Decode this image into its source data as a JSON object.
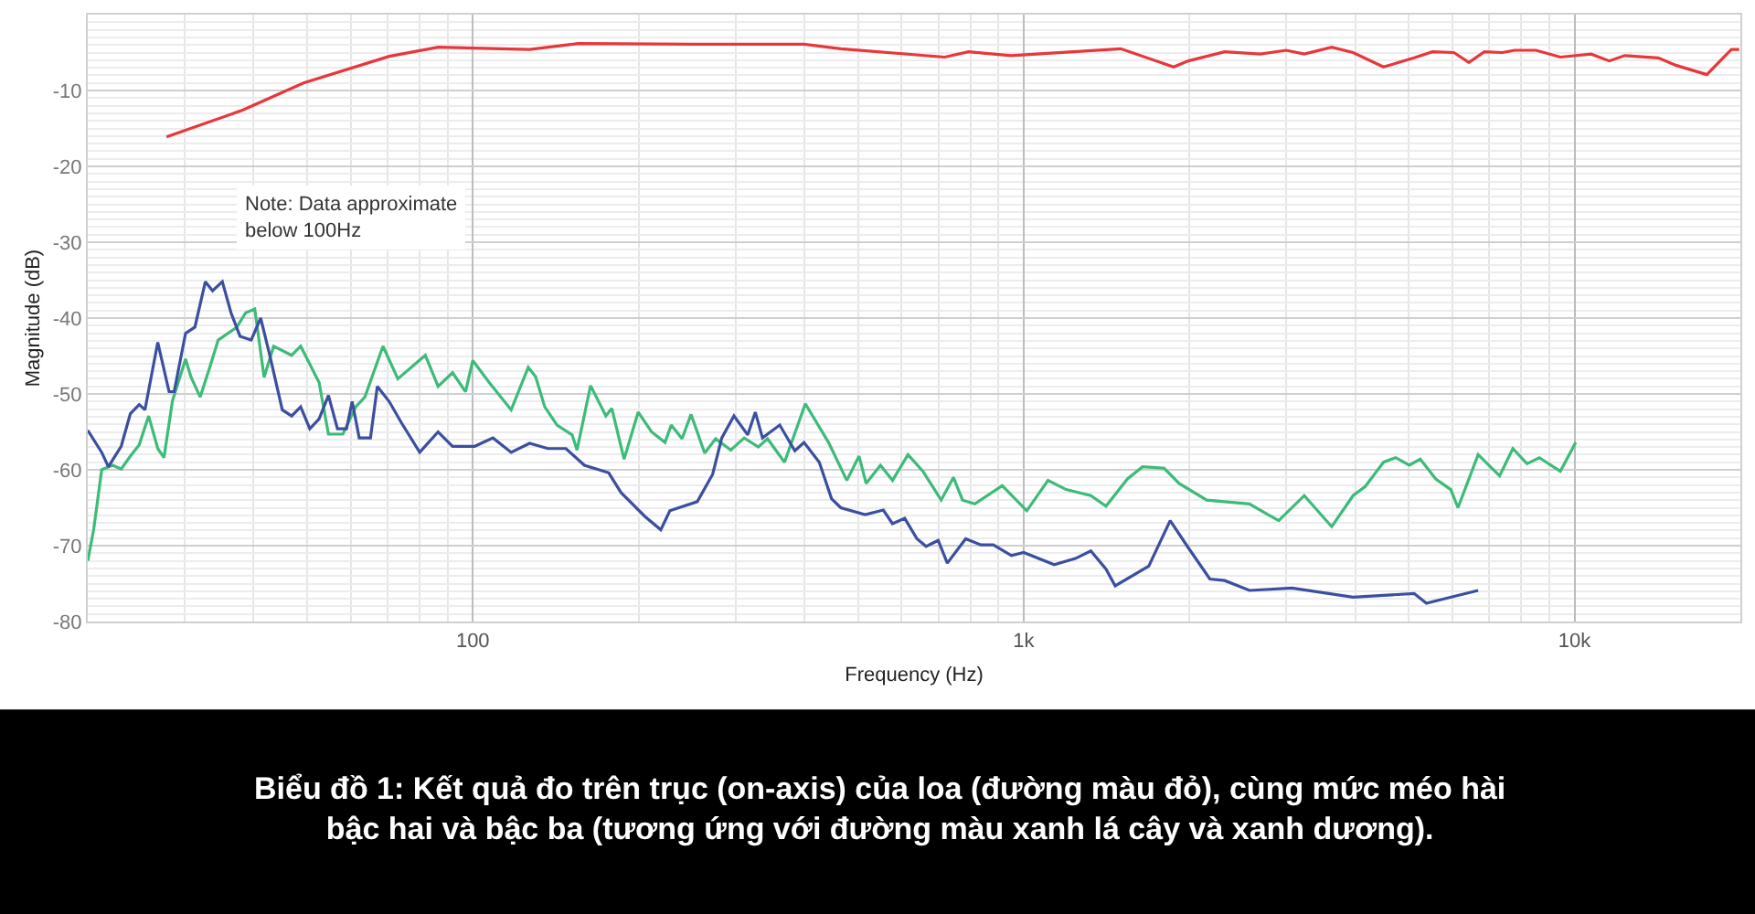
{
  "chart_data": {
    "type": "line",
    "xlabel": "Frequency (Hz)",
    "ylabel": "Magnitude (dB)",
    "log": "x",
    "grid": true,
    "xlim": [
      20,
      20000
    ],
    "xticks": [
      {
        "value": 100,
        "label": "100"
      },
      {
        "value": 1000,
        "label": "1k"
      },
      {
        "value": 10000,
        "label": "10k"
      }
    ],
    "ylim": [
      -80,
      0
    ],
    "yticks": [
      -80,
      -70,
      -60,
      -50,
      -40,
      -30,
      -20,
      -10
    ],
    "annotations": [
      "Note: Data approximate\nbelow 100Hz",
      "Biểu đồ 1: Kết quả đo trên trục (on-axis) của loa (đường màu đỏ), cùng mức méo hài bậc hai và bậc ba (tương ứng với đường màu xanh lá cây và xanh dương)."
    ],
    "series": [
      {
        "color": "#e8363a",
        "x": [
          27.8,
          38.2,
          49.3,
          70.5,
          86.5,
          126.8,
          155.4,
          252.3,
          399.3,
          465.6,
          719,
          794,
          948,
          1500,
          1872,
          1991,
          2317,
          2690,
          2995,
          3231,
          3624,
          3963,
          4500,
          5114,
          5521,
          6039,
          6430,
          6859,
          7396,
          7785,
          8511,
          9423,
          10720,
          11560,
          12330,
          14190,
          15310,
          17380,
          19260,
          19900
        ],
        "values": [
          -16.1,
          -12.6,
          -9,
          -5.5,
          -4.3,
          -4.6,
          -3.8,
          -3.9,
          -3.9,
          -4.5,
          -5.6,
          -4.9,
          -5.4,
          -4.5,
          -6.9,
          -6.1,
          -4.9,
          -5.2,
          -4.7,
          -5.2,
          -4.3,
          -5.0,
          -6.9,
          -5.7,
          -4.9,
          -5.0,
          -6.3,
          -4.9,
          -5.0,
          -4.7,
          -4.7,
          -5.6,
          -5.2,
          -6.1,
          -5.4,
          -5.7,
          -6.7,
          -7.9,
          -4.6,
          -4.6
        ]
      },
      {
        "color": "#3dbb78",
        "x": [
          20,
          20.5,
          21.2,
          22.2,
          23,
          23.9,
          24.8,
          25.8,
          26.8,
          27.5,
          28.5,
          30.1,
          30.8,
          32,
          33.2,
          34.5,
          37.3,
          38.7,
          40.2,
          41.8,
          43.5,
          46.9,
          48.7,
          52.6,
          54.7,
          58.1,
          61.3,
          63.7,
          68.7,
          73.1,
          82,
          86.5,
          91.9,
          97,
          100,
          107.1,
          117.4,
          126.1,
          130,
          135.1,
          142.2,
          151.5,
          154.6,
          163.6,
          174.4,
          178.8,
          188.2,
          199.6,
          211.1,
          223.3,
          229.2,
          239.8,
          249,
          263.6,
          275.9,
          294,
          310.9,
          329.8,
          342.8,
          368,
          401.5,
          442.4,
          477.5,
          502.5,
          517.6,
          549.5,
          578,
          616.6,
          656.4,
          708.3,
          745.8,
          774.5,
          815.4,
          914.2,
          1013,
          1107,
          1194,
          1324,
          1411,
          1543,
          1644,
          1799,
          1915,
          2149,
          2570,
          2773,
          2904,
          3231,
          3624,
          3963,
          4169,
          4500,
          4734,
          5012,
          5248,
          5598,
          5961,
          6143,
          6683,
          7311,
          7727,
          8199,
          8630,
          9423,
          10050
        ],
        "values": [
          -72,
          -67.9,
          -60,
          -59.4,
          -59.9,
          -58.2,
          -56.7,
          -52.9,
          -57.2,
          -58.4,
          -50.9,
          -45.4,
          -47.8,
          -50.4,
          -46.8,
          -42.9,
          -41.2,
          -39.3,
          -38.8,
          -47.8,
          -43.7,
          -44.9,
          -43.7,
          -48.5,
          -55.3,
          -55.3,
          -51.7,
          -50.4,
          -43.7,
          -48,
          -44.9,
          -49,
          -47.2,
          -49.7,
          -45.6,
          -48.5,
          -52.1,
          -46.5,
          -47.7,
          -51.7,
          -54.1,
          -55.4,
          -57.4,
          -48.9,
          -52.9,
          -51.9,
          -58.6,
          -52.4,
          -55,
          -56.4,
          -54.1,
          -55.9,
          -52.7,
          -57.8,
          -55.9,
          -57.4,
          -55.8,
          -57,
          -55.9,
          -59,
          -51.3,
          -56.4,
          -61.4,
          -58.2,
          -61.8,
          -59.4,
          -61.4,
          -58,
          -60.2,
          -64,
          -61,
          -64,
          -64.5,
          -62.1,
          -65.4,
          -61.4,
          -62.6,
          -63.4,
          -64.8,
          -61.2,
          -59.6,
          -59.8,
          -61.8,
          -64,
          -64.5,
          -65.9,
          -66.7,
          -63.4,
          -67.5,
          -63.4,
          -62.2,
          -59,
          -58.4,
          -59.4,
          -58.6,
          -61.2,
          -62.6,
          -65,
          -58,
          -60.8,
          -57.2,
          -59.2,
          -58.4,
          -60.2,
          -56.4
        ]
      },
      {
        "color": "#3b4fa0",
        "x": [
          20,
          21.2,
          21.8,
          23,
          23.9,
          24.8,
          25.4,
          26.8,
          28.1,
          28.7,
          30.1,
          31.3,
          32.7,
          33.7,
          35.1,
          36.4,
          37.8,
          39.6,
          41.2,
          42.8,
          45.1,
          46.9,
          48.7,
          50.6,
          52.6,
          54.7,
          56.8,
          59,
          60.4,
          62.2,
          65.2,
          67.1,
          70.5,
          74.2,
          80.1,
          86.5,
          91.9,
          100.8,
          108.8,
          117.4,
          126.8,
          136.8,
          147.6,
          159.4,
          176.5,
          185.8,
          205.7,
          219.4,
          227.9,
          255.6,
          272.5,
          283.1,
          297.9,
          315.6,
          325.7,
          335.7,
          360.7,
          384.3,
          399.3,
          425.6,
          447.9,
          465.6,
          515.4,
          556.2,
          577.9,
          608.3,
          640.2,
          665,
          699.6,
          726.7,
          784.7,
          836.6,
          880.9,
          950.1,
          1000,
          1136,
          1241,
          1324,
          1411,
          1466,
          1687,
          1845,
          1991,
          2178,
          2317,
          2570,
          3070,
          3963,
          5114,
          5383,
          6113,
          6683
        ],
        "values": [
          -54.8,
          -57.7,
          -59.6,
          -56.9,
          -52.6,
          -51.4,
          -52.1,
          -43.2,
          -49.7,
          -49.7,
          -42,
          -41.2,
          -35.2,
          -36.4,
          -35.2,
          -39.3,
          -42.4,
          -42.9,
          -40,
          -44.9,
          -52.1,
          -52.9,
          -51.7,
          -54.6,
          -53.3,
          -50.2,
          -54.6,
          -54.6,
          -51,
          -55.8,
          -55.8,
          -49,
          -51,
          -53.8,
          -57.7,
          -55,
          -56.9,
          -56.9,
          -55.8,
          -57.7,
          -56.5,
          -57.2,
          -57.2,
          -59.4,
          -60.4,
          -63,
          -66.2,
          -67.9,
          -65.4,
          -64.2,
          -60.6,
          -55.8,
          -52.9,
          -55.4,
          -52.4,
          -55.8,
          -54.1,
          -57.5,
          -56.4,
          -59,
          -63.8,
          -65,
          -65.9,
          -65.3,
          -67.1,
          -66.4,
          -69.1,
          -70.1,
          -69.3,
          -72.3,
          -69.1,
          -69.9,
          -69.9,
          -71.3,
          -70.9,
          -72.5,
          -71.7,
          -70.7,
          -73.1,
          -75.3,
          -72.7,
          -66.7,
          -70.3,
          -74.4,
          -74.6,
          -75.9,
          -75.6,
          -76.8,
          -76.3,
          -77.6,
          -76.6,
          -75.9
        ]
      }
    ]
  }
}
